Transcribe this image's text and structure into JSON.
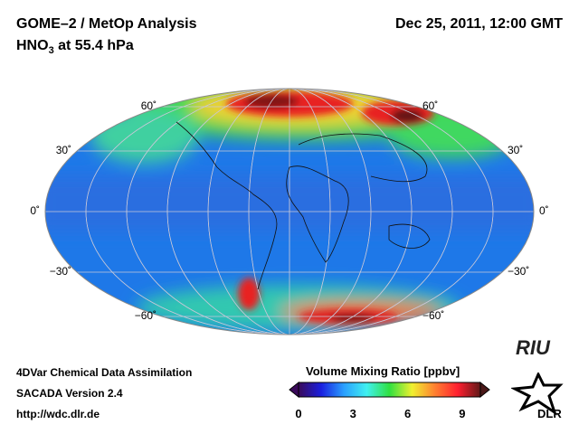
{
  "header": {
    "title": "GOME–2 / MetOp Analysis",
    "species": "HNO",
    "species_sub": "3",
    "level": " at 55.4 hPa",
    "datetime": "Dec 25, 2011, 12:00 GMT"
  },
  "map": {
    "lat_labels": [
      "60˚",
      "30˚",
      "0˚",
      "−30˚",
      "−60˚"
    ]
  },
  "footer": {
    "line1": "4DVar Chemical Data Assimilation",
    "line2": "SACADA Version 2.4",
    "line3": "http://wdc.dlr.de"
  },
  "colorbar": {
    "title": "Volume Mixing Ratio [ppbv]",
    "ticks": [
      "0",
      "3",
      "6",
      "9"
    ],
    "range": [
      0,
      10
    ],
    "colors": [
      "#3a0a5a",
      "#1a20e0",
      "#2aa0ff",
      "#40f0f0",
      "#30e040",
      "#f0f030",
      "#ff8030",
      "#ff2030",
      "#601818"
    ]
  },
  "logos": {
    "riu": "RIU",
    "dlr": "DLR"
  }
}
